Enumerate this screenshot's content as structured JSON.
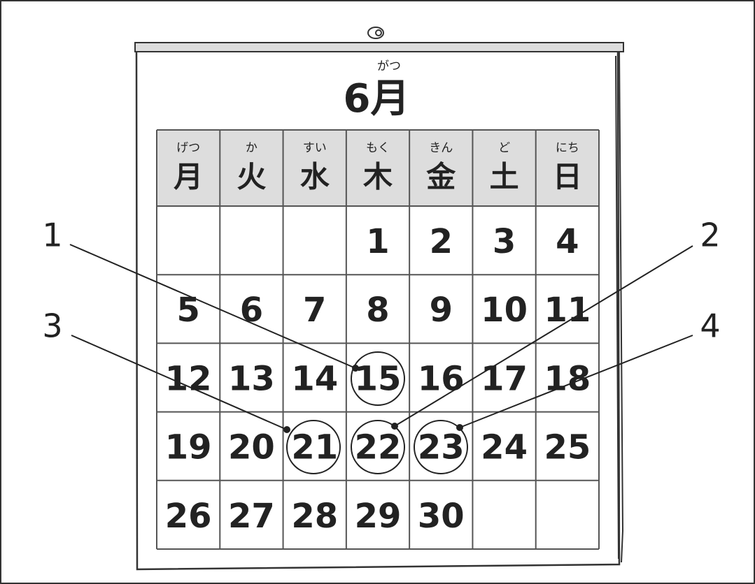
{
  "calendar": {
    "title": "6月",
    "title_ruby": "がつ",
    "weekdays": [
      {
        "label": "月",
        "ruby": "げつ"
      },
      {
        "label": "火",
        "ruby": "か"
      },
      {
        "label": "水",
        "ruby": "すい"
      },
      {
        "label": "木",
        "ruby": "もく"
      },
      {
        "label": "金",
        "ruby": "きん"
      },
      {
        "label": "土",
        "ruby": "ど"
      },
      {
        "label": "日",
        "ruby": "にち"
      }
    ],
    "weeks": [
      [
        null,
        null,
        null,
        1,
        2,
        3,
        4
      ],
      [
        5,
        6,
        7,
        8,
        9,
        10,
        11
      ],
      [
        12,
        13,
        14,
        15,
        16,
        17,
        18
      ],
      [
        19,
        20,
        21,
        22,
        23,
        24,
        25
      ],
      [
        26,
        27,
        28,
        29,
        30,
        null,
        null
      ]
    ]
  },
  "callouts": [
    {
      "label": "1"
    },
    {
      "label": "2"
    },
    {
      "label": "3"
    },
    {
      "label": "4"
    }
  ]
}
